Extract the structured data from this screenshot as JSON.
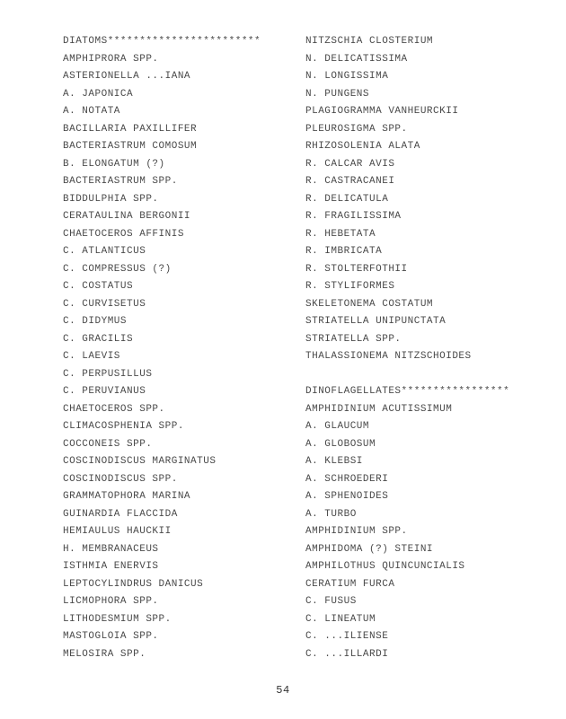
{
  "left_column": [
    "DIATOMS************************",
    "AMPHIPRORA SPP.",
    "ASTERIONELLA ...IANA",
    "A.   JAPONICA",
    "A.   NOTATA",
    "BACILLARIA PAXILLIFER",
    "BACTERIASTRUM COMOSUM",
    "B.   ELONGATUM (?)",
    "BACTERIASTRUM SPP.",
    "BIDDULPHIA SPP.",
    "CERATAULINA BERGONII",
    "CHAETOCEROS AFFINIS",
    "C.   ATLANTICUS",
    "C.   COMPRESSUS (?)",
    "C.   COSTATUS",
    "C.   CURVISETUS",
    "C.   DIDYMUS",
    "C.   GRACILIS",
    "C.   LAEVIS",
    "C.   PERPUSILLUS",
    "C.   PERUVIANUS",
    "CHAETOCEROS SPP.",
    "CLIMACOSPHENIA SPP.",
    "COCCONEIS SPP.",
    "COSCINODISCUS MARGINATUS",
    "COSCINODISCUS SPP.",
    "GRAMMATOPHORA MARINA",
    "GUINARDIA FLACCIDA",
    "HEMIAULUS HAUCKII",
    "H.   MEMBRANACEUS",
    "ISTHMIA ENERVIS",
    "LEPTOCYLINDRUS DANICUS",
    "LICMOPHORA SPP.",
    "LITHODESMIUM SPP.",
    "MASTOGLOIA SPP.",
    "MELOSIRA SPP."
  ],
  "right_column": [
    "NITZSCHIA CLOSTERIUM",
    "N.   DELICATISSIMA",
    "N.   LONGISSIMA",
    "N.   PUNGENS",
    "PLAGIOGRAMMA VANHEURCKII",
    "PLEUROSIGMA SPP.",
    "RHIZOSOLENIA ALATA",
    "R.   CALCAR AVIS",
    "R.   CASTRACANEI",
    "R.   DELICATULA",
    "R.   FRAGILISSIMA",
    "R.   HEBETATA",
    "R.   IMBRICATA",
    "R.   STOLTERFOTHII",
    "R.   STYLIFORMES",
    "SKELETONEMA COSTATUM",
    "STRIATELLA UNIPUNCTATA",
    "STRIATELLA SPP.",
    "THALASSIONEMA NITZSCHOIDES",
    "",
    "DINOFLAGELLATES*****************",
    "AMPHIDINIUM ACUTISSIMUM",
    "A.   GLAUCUM",
    "A.   GLOBOSUM",
    "A.   KLEBSI",
    "A.   SCHROEDERI",
    "A.   SPHENOIDES",
    "A.   TURBO",
    "AMPHIDINIUM SPP.",
    "AMPHIDOMA (?) STEINI",
    "AMPHILOTHUS QUINCUNCIALIS",
    "CERATIUM FURCA",
    "C.   FUSUS",
    "C.   LINEATUM",
    "C.   ...ILIENSE",
    "C.   ...ILLARDI"
  ],
  "page_number": "54"
}
